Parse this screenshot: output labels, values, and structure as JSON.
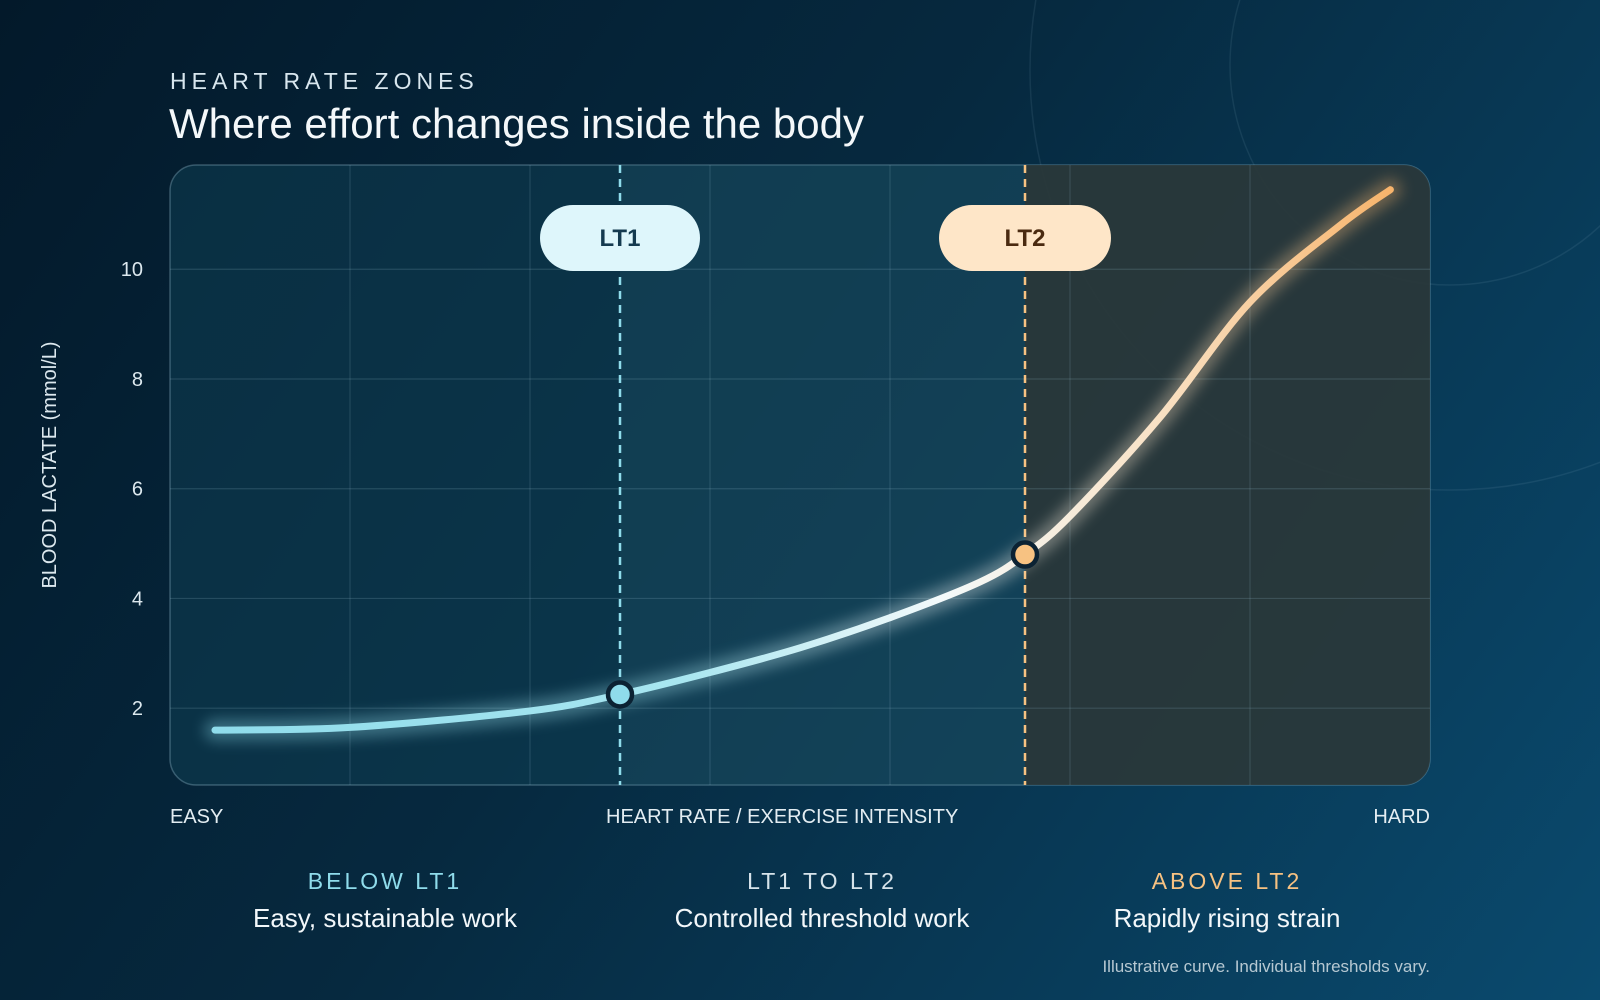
{
  "header": {
    "eyebrow": "HEART RATE ZONES",
    "title": "Where effort changes inside the body"
  },
  "axes": {
    "x_start": "EASY",
    "x_end": "HARD",
    "x_label": "HEART RATE / EXERCISE INTENSITY",
    "y_label": "BLOOD LACTATE (mmol/L)"
  },
  "zones": [
    {
      "label": "BELOW LT1",
      "desc": "Easy, sustainable work",
      "color": "#8fdceb"
    },
    {
      "label": "LT1 TO LT2",
      "desc": "Controlled threshold work",
      "color": "#d6e3ea"
    },
    {
      "label": "ABOVE LT2",
      "desc": "Rapidly rising strain",
      "color": "#f7c282"
    }
  ],
  "footnote": "Illustrative curve. Individual thresholds vary.",
  "colors": {
    "lt1": "#8fdceb",
    "lt1_pill": "#def6fb",
    "lt2": "#f7c282",
    "lt2_pill": "#fee6c8"
  },
  "chart_data": {
    "type": "line",
    "xlabel": "HEART RATE / EXERCISE INTENSITY",
    "ylabel": "BLOOD LACTATE (mmol/L)",
    "xlim": [
      0,
      7
    ],
    "ylim": [
      0.6,
      11.9
    ],
    "yticks": [
      2,
      4,
      6,
      8,
      10
    ],
    "grid": true,
    "series": [
      {
        "x": [
          0.25,
          1.0,
          2.0,
          2.5,
          3.0,
          3.5,
          4.0,
          4.5,
          4.75,
          5.0,
          5.5,
          6.0,
          6.5,
          6.78
        ],
        "y": [
          1.6,
          1.65,
          1.95,
          2.25,
          2.65,
          3.1,
          3.65,
          4.3,
          4.8,
          5.5,
          7.3,
          9.4,
          10.8,
          11.45
        ]
      }
    ],
    "thresholds": [
      {
        "name": "LT1",
        "x": 2.5,
        "y": 2.25
      },
      {
        "name": "LT2",
        "x": 4.75,
        "y": 4.8
      }
    ]
  }
}
